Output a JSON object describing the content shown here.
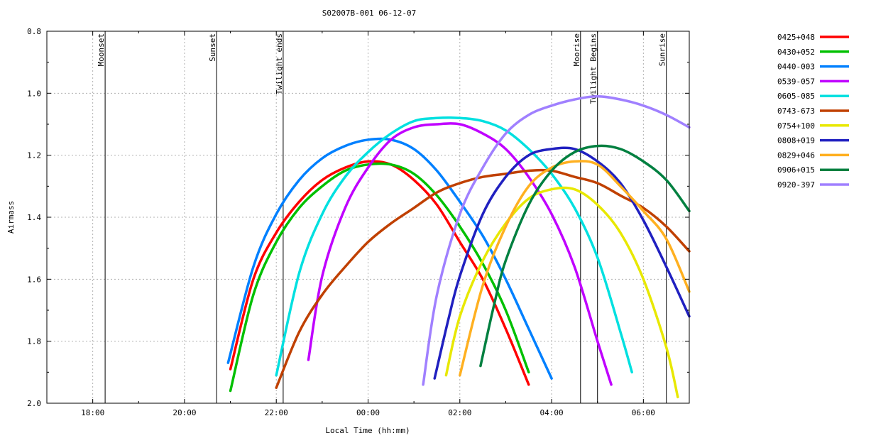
{
  "chart_data": {
    "type": "line",
    "title": "S02007B-001 06-12-07",
    "xlabel": "Local Time (hh:mm)",
    "ylabel": "Airmass",
    "x_unit": "local time (hours; values past 24 are after midnight)",
    "xlim": [
      17,
      31
    ],
    "ylim": [
      2.0,
      0.8
    ],
    "y_inverted": true,
    "grid": true,
    "legend_position": "right",
    "x_ticks": [
      {
        "value": 18,
        "label": "18:00"
      },
      {
        "value": 20,
        "label": "20:00"
      },
      {
        "value": 22,
        "label": "22:00"
      },
      {
        "value": 24,
        "label": "00:00"
      },
      {
        "value": 26,
        "label": "02:00"
      },
      {
        "value": 28,
        "label": "04:00"
      },
      {
        "value": 30,
        "label": "06:00"
      }
    ],
    "y_ticks": [
      {
        "value": 0.8,
        "label": "0.8"
      },
      {
        "value": 1.0,
        "label": "1.0"
      },
      {
        "value": 1.2,
        "label": "1.2"
      },
      {
        "value": 1.4,
        "label": "1.4"
      },
      {
        "value": 1.6,
        "label": "1.6"
      },
      {
        "value": 1.8,
        "label": "1.8"
      },
      {
        "value": 2.0,
        "label": "2.0"
      }
    ],
    "events": [
      {
        "label": "Moonset",
        "x": 18.27
      },
      {
        "label": "Sunset",
        "x": 20.7
      },
      {
        "label": "Twilight ends",
        "x": 22.15
      },
      {
        "label": "Moorise",
        "x": 28.63
      },
      {
        "label": "Twilight Begins",
        "x": 29.0
      },
      {
        "label": "Sunrise",
        "x": 30.5
      }
    ],
    "series": [
      {
        "name": "0425+048",
        "color": "#ff0000",
        "x": [
          21.0,
          21.5,
          22.0,
          22.5,
          23.0,
          23.5,
          24.0,
          24.5,
          25.0,
          25.5,
          26.0,
          26.5,
          27.0,
          27.5
        ],
        "y": [
          1.89,
          1.6,
          1.45,
          1.35,
          1.28,
          1.24,
          1.22,
          1.23,
          1.28,
          1.36,
          1.48,
          1.6,
          1.76,
          1.94
        ]
      },
      {
        "name": "0430+052",
        "color": "#00c000",
        "x": [
          21.0,
          21.5,
          22.0,
          22.5,
          23.0,
          23.5,
          24.0,
          24.5,
          25.0,
          25.5,
          26.0,
          26.5,
          27.0,
          27.5
        ],
        "y": [
          1.96,
          1.65,
          1.48,
          1.37,
          1.3,
          1.25,
          1.23,
          1.23,
          1.26,
          1.33,
          1.43,
          1.55,
          1.7,
          1.9
        ]
      },
      {
        "name": "0440-003",
        "color": "#0080ff",
        "x": [
          20.95,
          21.5,
          22.0,
          22.5,
          23.0,
          23.5,
          24.0,
          24.5,
          25.0,
          25.5,
          26.0,
          26.5,
          27.0,
          27.5,
          28.0
        ],
        "y": [
          1.87,
          1.56,
          1.39,
          1.28,
          1.21,
          1.17,
          1.15,
          1.15,
          1.18,
          1.25,
          1.35,
          1.46,
          1.6,
          1.76,
          1.92
        ]
      },
      {
        "name": "0539-057",
        "color": "#c000ff",
        "x": [
          22.7,
          23.0,
          23.5,
          24.0,
          24.5,
          25.0,
          25.5,
          26.0,
          26.5,
          27.0,
          27.5,
          28.0,
          28.5,
          29.0,
          29.3
        ],
        "y": [
          1.86,
          1.59,
          1.37,
          1.24,
          1.15,
          1.11,
          1.1,
          1.1,
          1.13,
          1.18,
          1.27,
          1.39,
          1.56,
          1.8,
          1.94
        ]
      },
      {
        "name": "0605-085",
        "color": "#00e0e0",
        "x": [
          22.0,
          22.5,
          23.0,
          23.5,
          24.0,
          24.5,
          25.0,
          25.5,
          26.0,
          26.5,
          27.0,
          27.5,
          28.0,
          28.5,
          29.0,
          29.5,
          29.75
        ],
        "y": [
          1.91,
          1.58,
          1.39,
          1.27,
          1.19,
          1.13,
          1.09,
          1.08,
          1.08,
          1.09,
          1.12,
          1.18,
          1.26,
          1.37,
          1.53,
          1.77,
          1.9
        ]
      },
      {
        "name": "0743-673",
        "color": "#c04000",
        "x": [
          22.0,
          22.5,
          23.0,
          23.5,
          24.0,
          24.5,
          25.0,
          25.5,
          26.0,
          26.5,
          27.0,
          27.5,
          28.0,
          28.5,
          29.0,
          29.5,
          30.0,
          30.5,
          31.0
        ],
        "y": [
          1.95,
          1.77,
          1.65,
          1.56,
          1.48,
          1.42,
          1.37,
          1.32,
          1.29,
          1.27,
          1.26,
          1.25,
          1.25,
          1.27,
          1.29,
          1.33,
          1.37,
          1.43,
          1.51
        ]
      },
      {
        "name": "0754+100",
        "color": "#e8e800",
        "x": [
          25.7,
          26.0,
          26.5,
          27.0,
          27.5,
          28.0,
          28.5,
          29.0,
          29.5,
          30.0,
          30.5,
          30.75
        ],
        "y": [
          1.91,
          1.72,
          1.54,
          1.42,
          1.34,
          1.31,
          1.31,
          1.36,
          1.45,
          1.6,
          1.82,
          1.98
        ]
      },
      {
        "name": "0808+019",
        "color": "#2020c0",
        "x": [
          25.45,
          25.75,
          26.0,
          26.5,
          27.0,
          27.5,
          28.0,
          28.5,
          29.0,
          29.5,
          30.0,
          30.5,
          31.0
        ],
        "y": [
          1.92,
          1.73,
          1.59,
          1.39,
          1.27,
          1.2,
          1.18,
          1.18,
          1.22,
          1.29,
          1.41,
          1.56,
          1.72
        ]
      },
      {
        "name": "0829+046",
        "color": "#ffb020",
        "x": [
          26.0,
          26.5,
          27.0,
          27.5,
          28.0,
          28.5,
          29.0,
          29.5,
          30.0,
          30.5,
          31.0
        ],
        "y": [
          1.91,
          1.62,
          1.43,
          1.3,
          1.24,
          1.22,
          1.23,
          1.3,
          1.38,
          1.47,
          1.64
        ]
      },
      {
        "name": "0906+015",
        "color": "#008040",
        "x": [
          26.45,
          26.75,
          27.0,
          27.5,
          28.0,
          28.5,
          29.0,
          29.5,
          30.0,
          30.5,
          31.0
        ],
        "y": [
          1.88,
          1.68,
          1.54,
          1.36,
          1.25,
          1.19,
          1.17,
          1.18,
          1.22,
          1.28,
          1.38
        ]
      },
      {
        "name": "0920-397",
        "color": "#a080ff",
        "x": [
          25.2,
          25.5,
          26.0,
          26.5,
          27.0,
          27.5,
          28.0,
          28.5,
          29.0,
          29.5,
          30.0,
          30.5,
          31.0
        ],
        "y": [
          1.94,
          1.65,
          1.39,
          1.24,
          1.13,
          1.07,
          1.04,
          1.02,
          1.01,
          1.02,
          1.04,
          1.07,
          1.11
        ]
      }
    ]
  }
}
